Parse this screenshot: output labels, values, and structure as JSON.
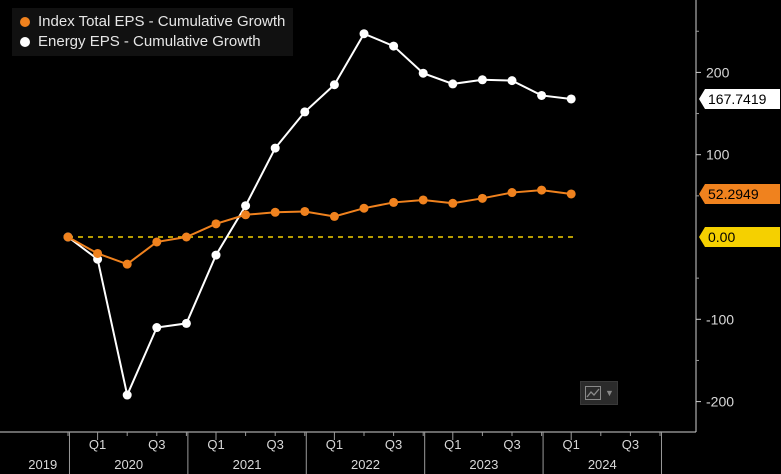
{
  "chart_data": {
    "type": "line",
    "series": [
      {
        "name": "Index Total EPS - Cumulative Growth",
        "color": "#f0821e",
        "x": [
          "2019-Q4",
          "2020-Q1",
          "2020-Q2",
          "2020-Q3",
          "2020-Q4",
          "2021-Q1",
          "2021-Q2",
          "2021-Q3",
          "2021-Q4",
          "2022-Q1",
          "2022-Q2",
          "2022-Q3",
          "2022-Q4",
          "2023-Q1",
          "2023-Q2",
          "2023-Q3",
          "2023-Q4",
          "2024-Q1"
        ],
        "values": [
          0,
          -20,
          -33,
          -6,
          0,
          16,
          27,
          30,
          31,
          25,
          35,
          42,
          45,
          41,
          47,
          54,
          57,
          52.2949
        ],
        "last_value_label": "52.2949"
      },
      {
        "name": "Energy EPS - Cumulative Growth",
        "color": "#ffffff",
        "x": [
          "2019-Q4",
          "2020-Q1",
          "2020-Q2",
          "2020-Q3",
          "2020-Q4",
          "2021-Q1",
          "2021-Q2",
          "2021-Q3",
          "2021-Q4",
          "2022-Q1",
          "2022-Q2",
          "2022-Q3",
          "2022-Q4",
          "2023-Q1",
          "2023-Q2",
          "2023-Q3",
          "2023-Q4",
          "2024-Q1"
        ],
        "values": [
          0,
          -27,
          -192,
          -110,
          -105,
          -22,
          38,
          108,
          152,
          185,
          247,
          232,
          199,
          186,
          191,
          190,
          172,
          167.7419
        ],
        "last_value_label": "167.7419"
      }
    ],
    "reference_line": {
      "value": 0,
      "label": "0.00",
      "color": "#f5d000"
    },
    "y_axis": {
      "side": "right",
      "ticks": [
        200,
        100,
        -100,
        -200
      ],
      "tick_labels": [
        "200",
        "100",
        "-100",
        "-200"
      ],
      "ylim": [
        -233,
        285
      ]
    },
    "x_axis": {
      "quarter_labels": [
        "Q1",
        "Q3",
        "Q1",
        "Q3",
        "Q1",
        "Q3",
        "Q1",
        "Q3",
        "Q1",
        "Q3"
      ],
      "year_labels": [
        "2019",
        "2020",
        "2021",
        "2022",
        "2023",
        "2024"
      ]
    },
    "title": "",
    "xlabel": "",
    "ylabel": "",
    "legend_placement": "top-left",
    "grid": false
  }
}
